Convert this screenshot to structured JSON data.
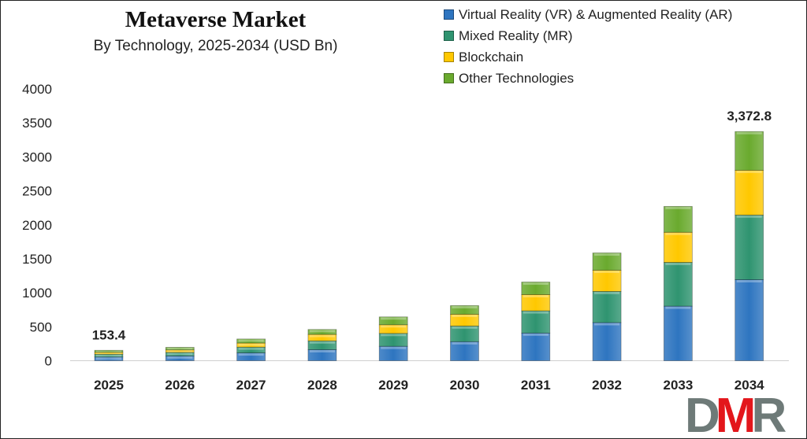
{
  "chart_data": {
    "type": "bar",
    "stacked": true,
    "title": "Metaverse Market",
    "subtitle": "By Technology, 2025-2034 (USD Bn)",
    "xlabel": "",
    "ylabel": "",
    "ylim": [
      0,
      4000
    ],
    "yticks": [
      0,
      500,
      1000,
      1500,
      2000,
      2500,
      3000,
      3500,
      4000
    ],
    "grid": false,
    "legend_position": "top-right",
    "categories": [
      "2025",
      "2026",
      "2027",
      "2028",
      "2029",
      "2030",
      "2031",
      "2032",
      "2033",
      "2034"
    ],
    "series": [
      {
        "name": "Virtual Reality (VR) & Augmented Reality (AR)",
        "color": "#2e75c0",
        "values": [
          55,
          70,
          115,
          163,
          212,
          280,
          407,
          561,
          803,
          1193
        ]
      },
      {
        "name": "Mixed Reality (MR)",
        "color": "#2f9470",
        "values": [
          41,
          53,
          85,
          129,
          190,
          231,
          327,
          459,
          644,
          951
        ]
      },
      {
        "name": "Blockchain",
        "color": "#ffc800",
        "values": [
          28,
          36,
          60,
          95,
          127,
          173,
          239,
          312,
          443,
          659
        ]
      },
      {
        "name": "Other Technologies",
        "color": "#6aaa2e",
        "values": [
          29.4,
          38,
          60,
          73,
          116,
          127,
          185,
          254,
          381,
          569.8
        ]
      }
    ],
    "data_labels": [
      {
        "category": "2025",
        "text": "153.4"
      },
      {
        "category": "2034",
        "text": "3,372.8"
      }
    ]
  },
  "logo": {
    "text": "DMR",
    "letters": [
      "D",
      "M",
      "R"
    ],
    "colors": [
      "#6e7a78",
      "#e3161b",
      "#6e7a78"
    ]
  }
}
